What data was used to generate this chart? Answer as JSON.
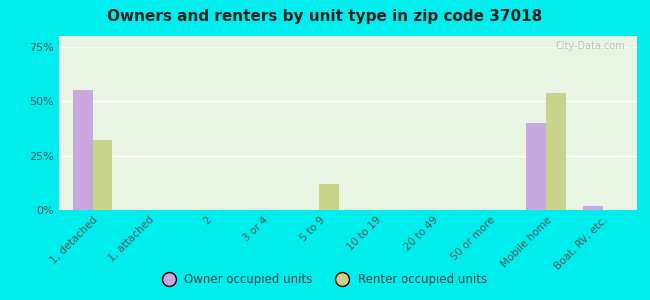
{
  "title": "Owners and renters by unit type in zip code 37018",
  "categories": [
    "1, detached",
    "1, attached",
    "2",
    "3 or 4",
    "5 to 9",
    "10 to 19",
    "20 to 49",
    "50 or more",
    "Mobile home",
    "Boat, RV, etc."
  ],
  "owner_values": [
    55,
    0,
    0,
    0,
    0,
    0,
    0,
    0,
    40,
    2
  ],
  "renter_values": [
    32,
    0,
    0,
    0,
    12,
    0,
    0,
    0,
    54,
    0
  ],
  "owner_color": "#c9a8e0",
  "renter_color": "#c8d48a",
  "background_color": "#00eded",
  "plot_bg": "#e8f5e2",
  "yticks": [
    0,
    25,
    50,
    75
  ],
  "ylim": [
    0,
    80
  ],
  "bar_width": 0.35,
  "legend_labels": [
    "Owner occupied units",
    "Renter occupied units"
  ],
  "watermark": "City-Data.com"
}
